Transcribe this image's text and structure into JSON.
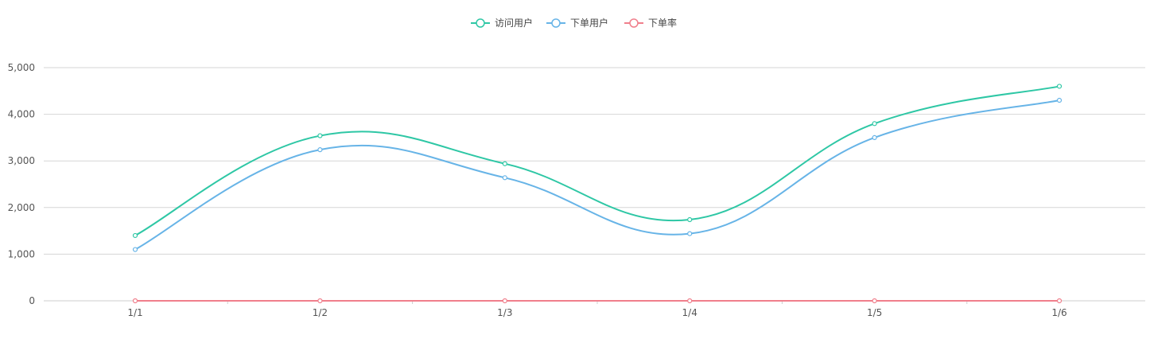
{
  "chart_data": {
    "type": "line",
    "smooth": true,
    "categories": [
      "1/1",
      "1/2",
      "1/3",
      "1/4",
      "1/5",
      "1/6"
    ],
    "series": [
      {
        "name": "访问用户",
        "color": "#2ec7a5",
        "values": [
          1400,
          3540,
          2940,
          1740,
          3800,
          4600
        ]
      },
      {
        "name": "下单用户",
        "color": "#67b4e7",
        "values": [
          1100,
          3240,
          2640,
          1440,
          3500,
          4300
        ]
      },
      {
        "name": "下单率",
        "color": "#f07f8c",
        "values": [
          0,
          0,
          0,
          0,
          0,
          0
        ]
      }
    ],
    "y_ticks": [
      "0",
      "1,000",
      "2,000",
      "3,000",
      "4,000",
      "5,000"
    ],
    "ylim": [
      0,
      5000
    ],
    "grid": true,
    "legend_position": "top-center",
    "title": "",
    "xlabel": "",
    "ylabel": ""
  }
}
